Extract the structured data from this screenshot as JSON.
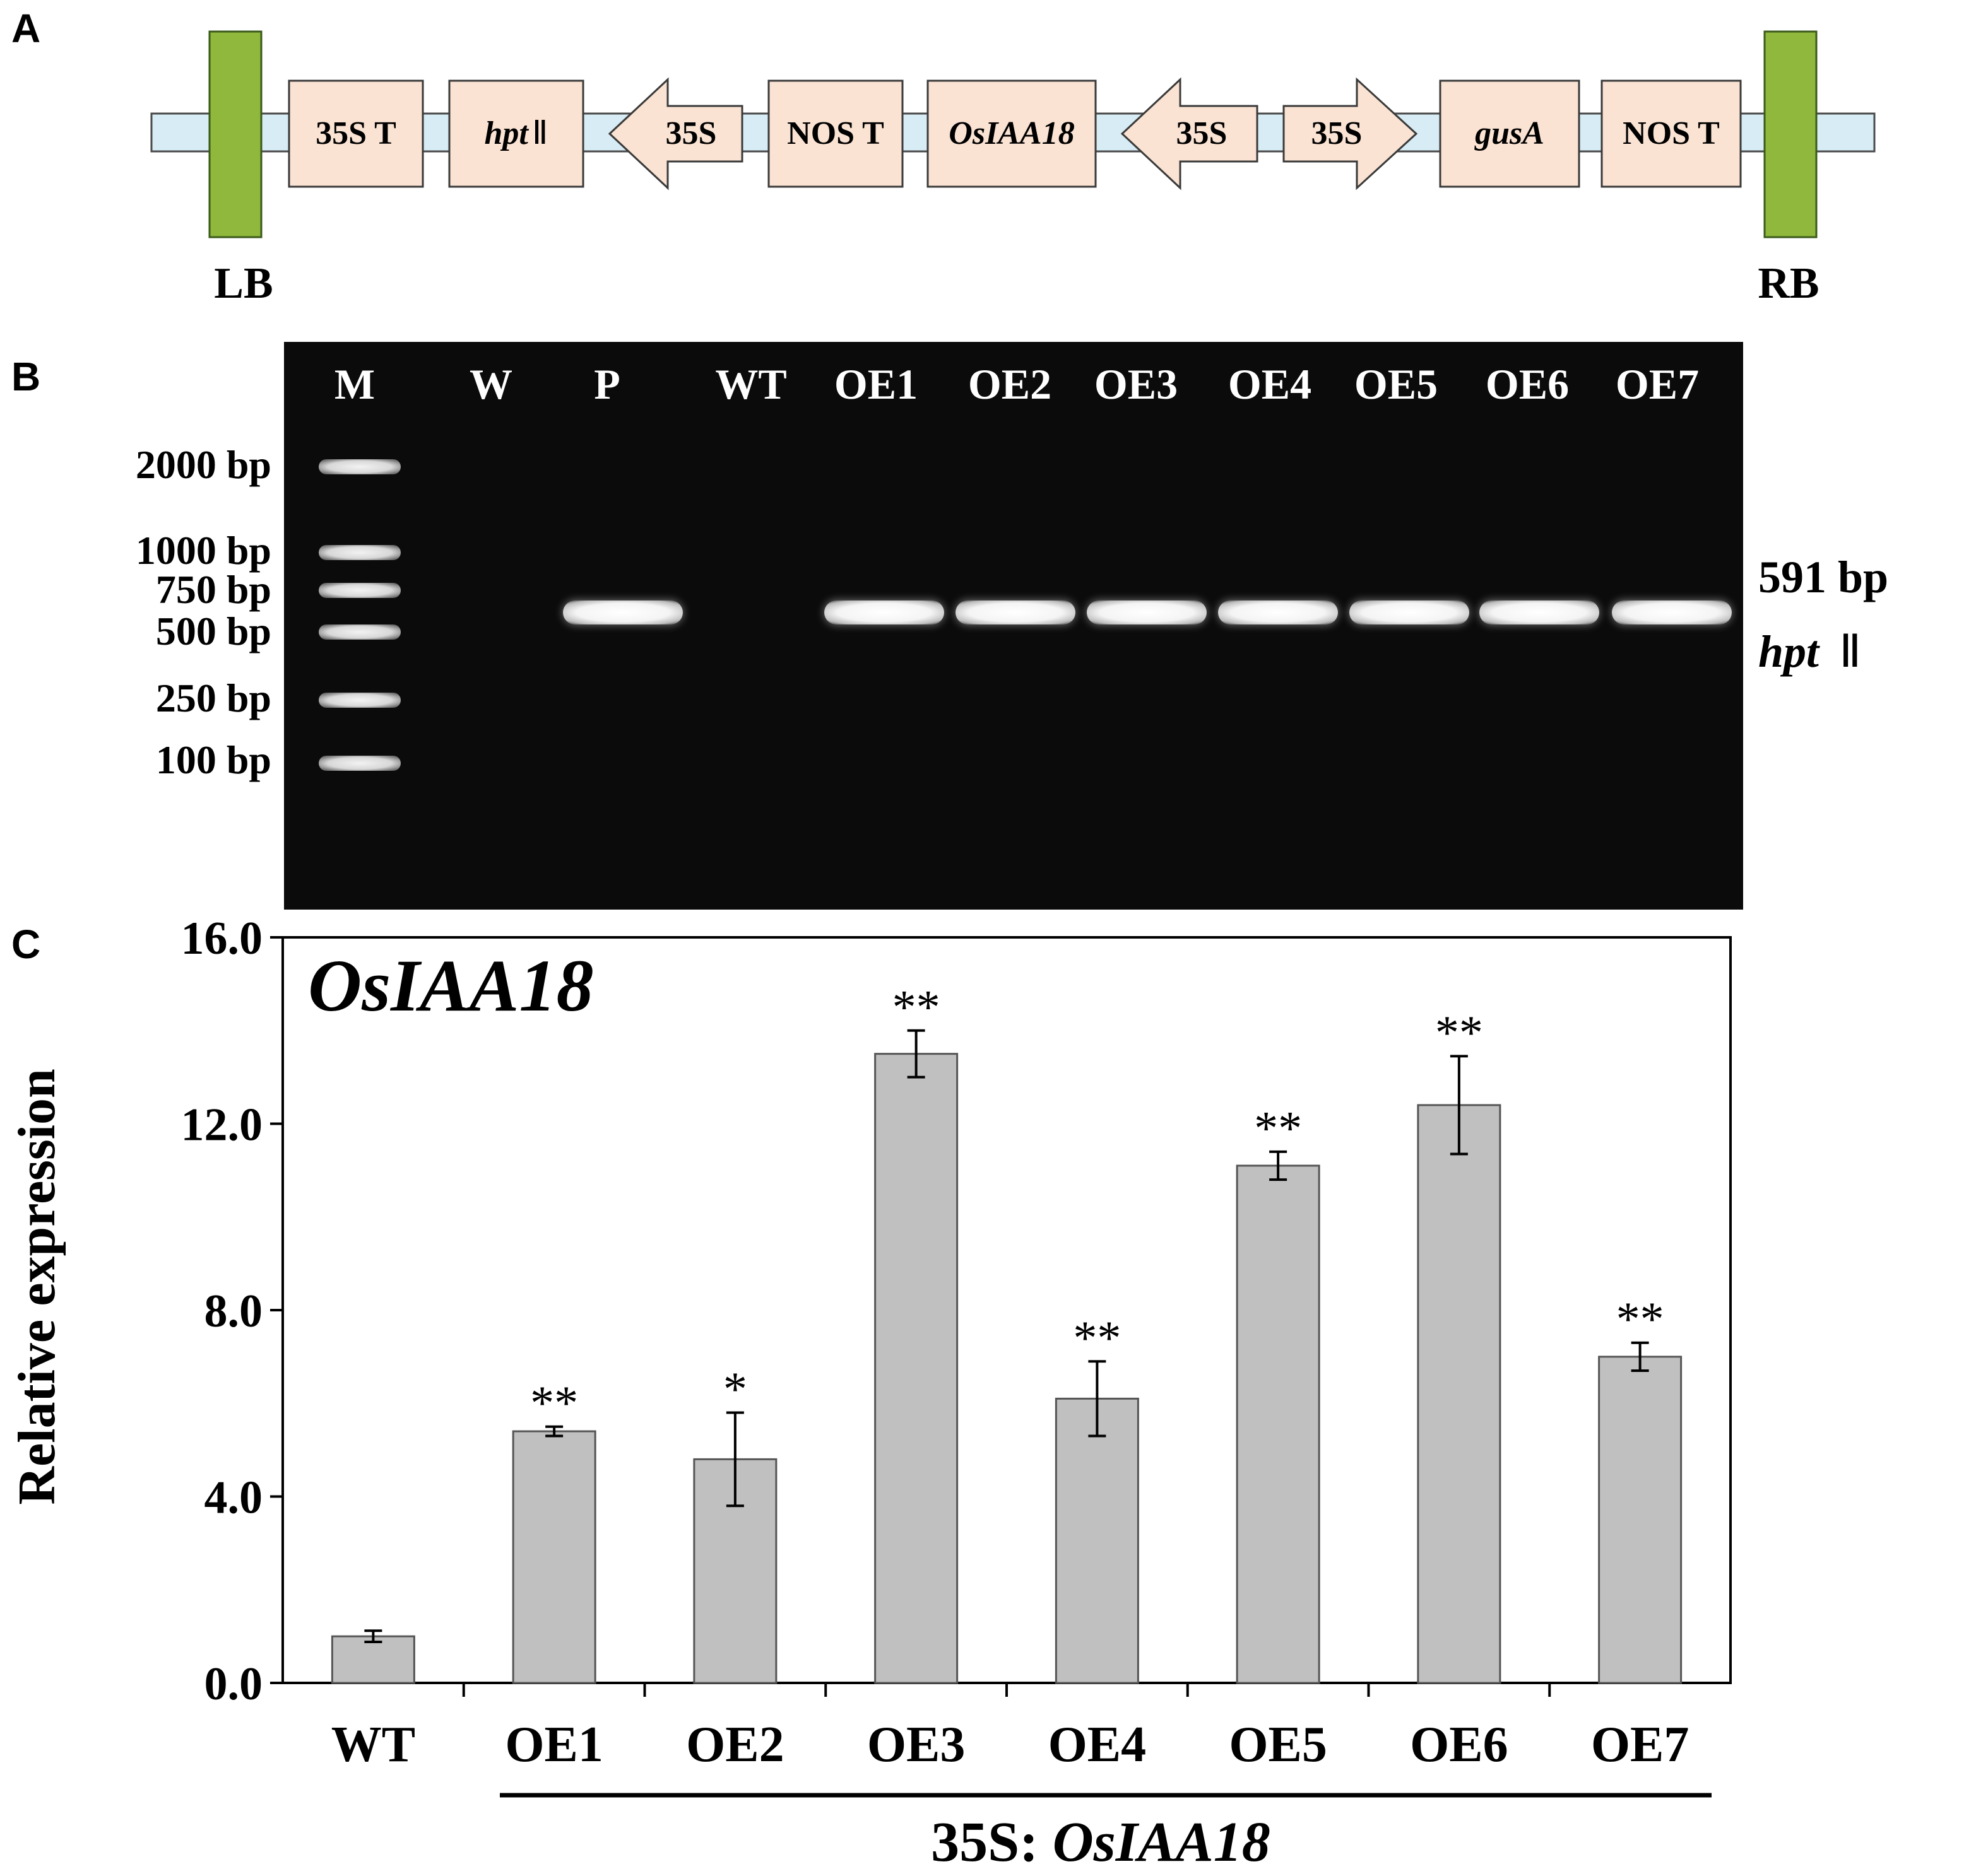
{
  "panels": {
    "a": "A",
    "b": "B",
    "c": "C"
  },
  "construct": {
    "lb": "LB",
    "rb": "RB",
    "elements": [
      {
        "label": "35S T",
        "kind": "box",
        "italic": false
      },
      {
        "label": "hpt",
        "suffix": "Ⅱ",
        "kind": "box",
        "italic": true
      },
      {
        "label": "35S",
        "kind": "arrow-left",
        "italic": false
      },
      {
        "label": "NOS T",
        "kind": "box",
        "italic": false
      },
      {
        "label": "OsIAA18",
        "kind": "box",
        "italic": true
      },
      {
        "label": "35S",
        "kind": "arrow-left",
        "italic": false
      },
      {
        "label": "35S",
        "kind": "arrow-right",
        "italic": false
      },
      {
        "label": "gusA",
        "kind": "box",
        "italic": true
      },
      {
        "label": "NOS T",
        "kind": "box",
        "italic": false
      }
    ]
  },
  "gel": {
    "lanes": [
      "M",
      "W",
      "P",
      "WT",
      "OE1",
      "OE2",
      "OE3",
      "OE4",
      "OE5",
      "OE6",
      "OE7"
    ],
    "lanes_with_band": [
      "P",
      "OE1",
      "OE2",
      "OE3",
      "OE4",
      "OE5",
      "OE6",
      "OE7"
    ],
    "ladder": [
      "2000 bp",
      "1000 bp",
      "750 bp",
      "500 bp",
      "250 bp",
      "100 bp"
    ],
    "band_size": "591 bp",
    "band_gene": "hpt",
    "band_gene_suffix": "Ⅱ"
  },
  "chart_data": {
    "type": "bar",
    "title": "OsIAA18",
    "ylabel": "Relative expression",
    "categories": [
      "WT",
      "OE1",
      "OE2",
      "OE3",
      "OE4",
      "OE5",
      "OE6",
      "OE7"
    ],
    "values": [
      1.0,
      5.4,
      4.8,
      13.5,
      6.1,
      11.1,
      12.4,
      7.0
    ],
    "errors": [
      0.12,
      0.1,
      1.0,
      0.5,
      0.8,
      0.3,
      1.05,
      0.3
    ],
    "significance": [
      "",
      "**",
      "*",
      "**",
      "**",
      "**",
      "**",
      "**"
    ],
    "yticks": [
      "0.0",
      "4.0",
      "8.0",
      "12.0",
      "16.0"
    ],
    "ylim": [
      0,
      16
    ],
    "bar_color": "#c0c0c0",
    "group_label_prefix": "35S: ",
    "group_label_gene": "OsIAA18",
    "grid": false
  }
}
